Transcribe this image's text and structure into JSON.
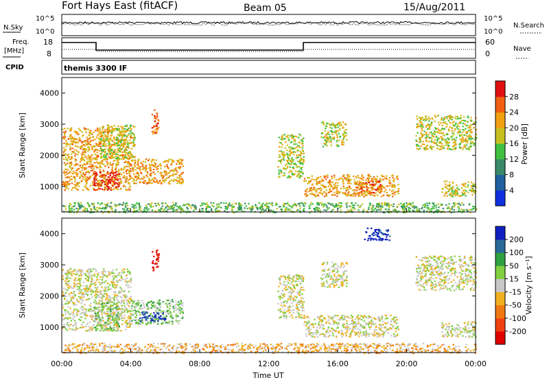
{
  "header": {
    "title": "Fort Hays East (fitACF)",
    "beam": "Beam 05",
    "date": "15/Aug/2011"
  },
  "top_panel": {
    "nsky_label": "N.Sky",
    "nsky_ticks": [
      "10^5",
      "10^0"
    ],
    "nsearch_label": "N.Search",
    "nsearch_ticks": [
      "10^5",
      "10^0"
    ],
    "freq_label": "Freq.",
    "freq_unit": "[MHz]",
    "freq_ticks": [
      "18",
      "8"
    ],
    "nave_label": "Nave",
    "nave_ticks": [
      "60",
      "0"
    ],
    "cpid_label": "CPID",
    "cpid_value": "themis 3300 IF"
  },
  "time_axis": {
    "label": "Time UT",
    "ticks": [
      "00:00",
      "04:00",
      "08:00",
      "12:00",
      "16:00",
      "20:00",
      "00:00"
    ]
  },
  "colors": {
    "power_scale": [
      "#1030e0",
      "#2060a0",
      "#3a8a6a",
      "#40c040",
      "#c8c020",
      "#f0a010",
      "#f06010",
      "#e01010"
    ],
    "velocity_scale": [
      "#1020c0",
      "#2a6a9a",
      "#30a040",
      "#80d040",
      "#c8c8c8",
      "#f0b020",
      "#f07810",
      "#f04010",
      "#e00000"
    ]
  },
  "chart_data": [
    {
      "type": "heatmap",
      "ylabel": "Slant Range [km]",
      "xlabel": "",
      "y_ticks": [
        "1000",
        "2000",
        "3000",
        "4000"
      ],
      "ylim": [
        180,
        4500
      ],
      "x_hours": [
        0,
        24
      ],
      "colorbar_label": "Power [dB]",
      "colorbar_ticks": [
        "4",
        "8",
        "12",
        "16",
        "20",
        "24",
        "28"
      ],
      "regions": [
        {
          "t0": 0.0,
          "t1": 4.0,
          "r0": 900,
          "r1": 2900,
          "level": 5
        },
        {
          "t0": 1.8,
          "t1": 3.3,
          "r0": 900,
          "r1": 1500,
          "level": 7
        },
        {
          "t0": 2.2,
          "t1": 4.2,
          "r0": 1900,
          "r1": 3000,
          "level": 4
        },
        {
          "t0": 4.0,
          "t1": 7.0,
          "r0": 1100,
          "r1": 1900,
          "level": 5
        },
        {
          "t0": 5.2,
          "t1": 5.6,
          "r0": 2700,
          "r1": 3500,
          "level": 6
        },
        {
          "t0": 12.5,
          "t1": 14.0,
          "r0": 1300,
          "r1": 2700,
          "level": 4
        },
        {
          "t0": 14.0,
          "t1": 19.5,
          "r0": 700,
          "r1": 1400,
          "level": 5
        },
        {
          "t0": 17.0,
          "t1": 18.5,
          "r0": 800,
          "r1": 1200,
          "level": 6
        },
        {
          "t0": 15.0,
          "t1": 16.5,
          "r0": 2300,
          "r1": 3100,
          "level": 4
        },
        {
          "t0": 20.5,
          "t1": 24.0,
          "r0": 2200,
          "r1": 3300,
          "level": 4
        },
        {
          "t0": 22.0,
          "t1": 24.0,
          "r0": 700,
          "r1": 1200,
          "level": 4
        },
        {
          "t0": 0.0,
          "t1": 24.0,
          "r0": 180,
          "r1": 500,
          "level": 3
        }
      ]
    },
    {
      "type": "heatmap",
      "ylabel": "Slant Range [km]",
      "xlabel": "Time UT",
      "y_ticks": [
        "1000",
        "2000",
        "3000",
        "4000"
      ],
      "ylim": [
        180,
        4500
      ],
      "x_hours": [
        0,
        24
      ],
      "colorbar_label": "Velocity [m s⁻¹]",
      "colorbar_ticks": [
        "200",
        "100",
        "50",
        "15",
        "-15",
        "-50",
        "-100",
        "-200"
      ],
      "regions": [
        {
          "t0": 0.0,
          "t1": 4.0,
          "r0": 900,
          "r1": 2900,
          "level": 4
        },
        {
          "t0": 1.8,
          "t1": 3.3,
          "r0": 900,
          "r1": 1800,
          "level": 3
        },
        {
          "t0": 4.0,
          "t1": 7.0,
          "r0": 1100,
          "r1": 1900,
          "level": 3
        },
        {
          "t0": 4.5,
          "t1": 6.0,
          "r0": 1200,
          "r1": 1500,
          "level": 0
        },
        {
          "t0": 5.2,
          "t1": 5.6,
          "r0": 2800,
          "r1": 3500,
          "level": 8
        },
        {
          "t0": 12.5,
          "t1": 14.0,
          "r0": 1300,
          "r1": 2700,
          "level": 4
        },
        {
          "t0": 14.0,
          "t1": 19.5,
          "r0": 700,
          "r1": 1400,
          "level": 4
        },
        {
          "t0": 15.0,
          "t1": 16.5,
          "r0": 2300,
          "r1": 3100,
          "level": 4
        },
        {
          "t0": 20.5,
          "t1": 24.0,
          "r0": 2200,
          "r1": 3300,
          "level": 4
        },
        {
          "t0": 22.0,
          "t1": 24.0,
          "r0": 700,
          "r1": 1200,
          "level": 4
        },
        {
          "t0": 17.5,
          "t1": 19.0,
          "r0": 3800,
          "r1": 4200,
          "level": 0
        },
        {
          "t0": 0.0,
          "t1": 24.0,
          "r0": 180,
          "r1": 500,
          "level": 5
        }
      ]
    }
  ]
}
